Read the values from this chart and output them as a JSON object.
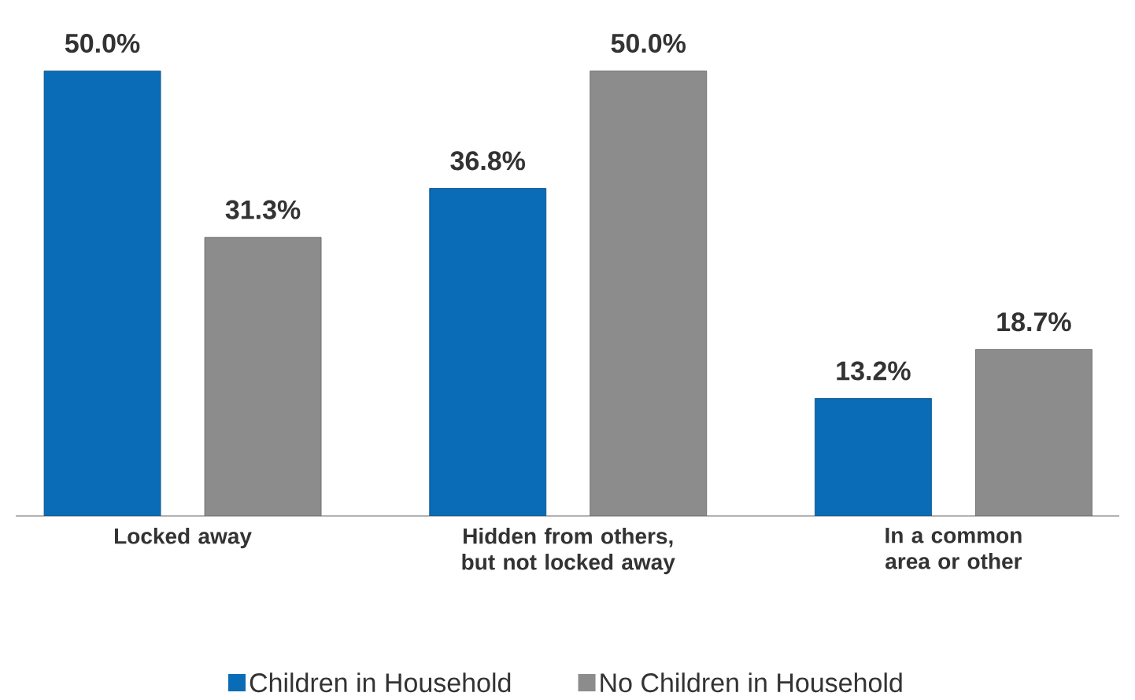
{
  "chart_data": {
    "type": "bar",
    "categories": [
      "Locked away",
      "Hidden from others, but not locked away",
      "In a common area or other"
    ],
    "series": [
      {
        "name": "Children in Household",
        "color": "#0a6cb6",
        "values": [
          50.0,
          36.8,
          13.2
        ],
        "value_labels": [
          "50.0%",
          "36.8%",
          "13.2%"
        ]
      },
      {
        "name": "No Children in Household",
        "color": "#8c8c8c",
        "values": [
          31.3,
          50.0,
          18.7
        ],
        "value_labels": [
          "31.3%",
          "50.0%",
          "18.7%"
        ]
      }
    ],
    "legend": "bottom"
  }
}
